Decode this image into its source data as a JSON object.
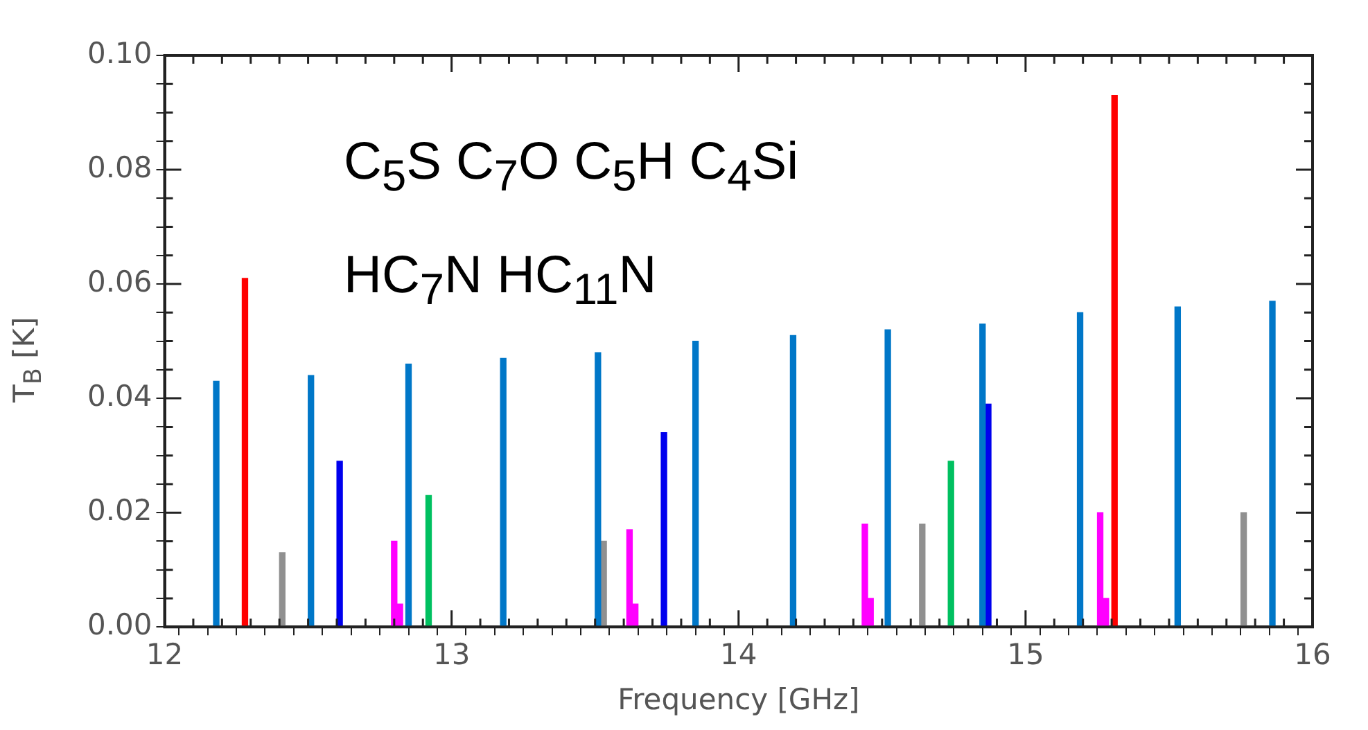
{
  "chart_data": {
    "type": "bar",
    "xlabel": "Frequency [GHz]",
    "ylabel": "T$_{B}$ [K]",
    "annotations": [
      "C$_{5}$S C$_{7}$O C$_{5}$H C$_{4}$Si",
      "HC$_{7}$N  HC$_{11}$N"
    ],
    "series": [
      {
        "color": "#0077c8",
        "x": [
          12.18,
          12.51,
          12.85,
          13.18,
          13.51,
          13.85,
          14.19,
          14.52,
          14.85,
          15.19,
          15.53,
          15.86
        ],
        "values": [
          0.043,
          0.044,
          0.046,
          0.047,
          0.048,
          0.05,
          0.051,
          0.052,
          0.053,
          0.055,
          0.056,
          0.057
        ]
      },
      {
        "color": "#ff0000",
        "x": [
          12.28,
          15.31
        ],
        "values": [
          0.061,
          0.093
        ]
      },
      {
        "color": "#909090",
        "x": [
          12.41,
          13.53,
          14.64,
          15.76
        ],
        "values": [
          0.013,
          0.015,
          0.018,
          0.02
        ]
      },
      {
        "color": "#0000ee",
        "x": [
          12.61,
          13.74,
          14.87
        ],
        "values": [
          0.029,
          0.034,
          0.039
        ]
      },
      {
        "color": "#ff00ff",
        "x": [
          12.8,
          12.82,
          13.62,
          13.64,
          14.44,
          14.46,
          15.26,
          15.28
        ],
        "values": [
          0.015,
          0.004,
          0.017,
          0.004,
          0.018,
          0.005,
          0.02,
          0.005
        ]
      },
      {
        "color": "#00c060",
        "x": [
          12.92,
          14.74
        ],
        "values": [
          0.023,
          0.029
        ]
      }
    ],
    "xlim": [
      12,
      16
    ],
    "xticks": [
      12,
      {
        "value": 12.1,
        "label": null
      },
      {
        "value": 12.2,
        "label": null
      },
      {
        "value": 12.3,
        "label": null
      },
      {
        "value": 12.4,
        "label": null
      },
      {
        "value": 12.5,
        "label": null
      },
      {
        "value": 12.6,
        "label": null
      },
      {
        "value": 12.7,
        "label": null
      },
      {
        "value": 12.8,
        "label": null
      },
      {
        "value": 12.9,
        "label": null
      },
      13,
      {
        "value": 13.1,
        "label": null
      },
      {
        "value": 13.2,
        "label": null
      },
      {
        "value": 13.3,
        "label": null
      },
      {
        "value": 13.4,
        "label": null
      },
      {
        "value": 13.5,
        "label": null
      },
      {
        "value": 13.6,
        "label": null
      },
      {
        "value": 13.7,
        "label": null
      },
      {
        "value": 13.8,
        "label": null
      },
      {
        "value": 13.9,
        "label": null
      },
      14,
      {
        "value": 14.1,
        "label": null
      },
      {
        "value": 14.2,
        "label": null
      },
      {
        "value": 14.3,
        "label": null
      },
      {
        "value": 14.4,
        "label": null
      },
      {
        "value": 14.5,
        "label": null
      },
      {
        "value": 14.6,
        "label": null
      },
      {
        "value": 14.7,
        "label": null
      },
      {
        "value": 14.8,
        "label": null
      },
      {
        "value": 14.9,
        "label": null
      },
      15,
      {
        "value": 15.1,
        "label": null
      },
      {
        "value": 15.2,
        "label": null
      },
      {
        "value": 15.3,
        "label": null
      },
      {
        "value": 15.4,
        "label": null
      },
      {
        "value": 15.5,
        "label": null
      },
      {
        "value": 15.6,
        "label": null
      },
      {
        "value": 15.7,
        "label": null
      },
      {
        "value": 15.8,
        "label": null
      },
      {
        "value": 15.9,
        "label": null
      },
      16
    ],
    "ylim": [
      0,
      0.1
    ],
    "yticks": [
      {
        "value": 0,
        "label": "0.00"
      },
      {
        "value": 0.005,
        "label": null
      },
      {
        "value": 0.01,
        "label": null
      },
      {
        "value": 0.015,
        "label": null
      },
      {
        "value": 0.02,
        "label": "0.02"
      },
      {
        "value": 0.025,
        "label": null
      },
      {
        "value": 0.03,
        "label": null
      },
      {
        "value": 0.035,
        "label": null
      },
      {
        "value": 0.04,
        "label": "0.04"
      },
      {
        "value": 0.045,
        "label": null
      },
      {
        "value": 0.05,
        "label": null
      },
      {
        "value": 0.055,
        "label": null
      },
      {
        "value": 0.06,
        "label": "0.06"
      },
      {
        "value": 0.065,
        "label": null
      },
      {
        "value": 0.07,
        "label": null
      },
      {
        "value": 0.075,
        "label": null
      },
      {
        "value": 0.08,
        "label": "0.08"
      },
      {
        "value": 0.085,
        "label": null
      },
      {
        "value": 0.09,
        "label": null
      },
      {
        "value": 0.095,
        "label": null
      },
      {
        "value": 0.1,
        "label": "0.10"
      }
    ],
    "grid": false,
    "legend": false
  }
}
